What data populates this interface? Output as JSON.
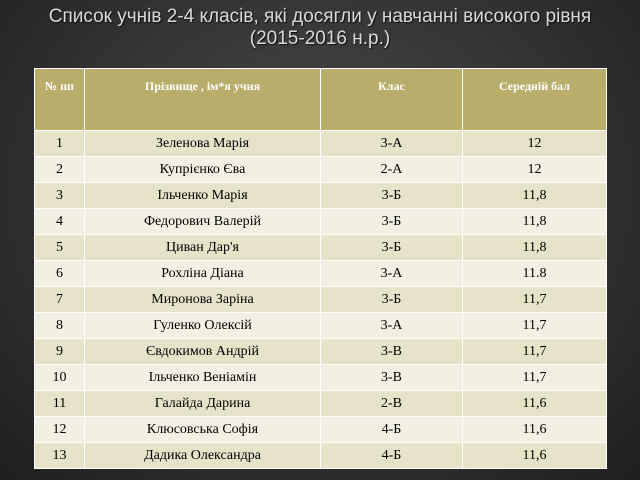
{
  "title": {
    "line1": "Список учнів 2-4 класів, які досягли у навчанні високого рівня",
    "line2": "(2015-2016 н.р.)"
  },
  "table": {
    "headers": [
      "№ пп",
      "Прізвище , ім*я  учня",
      "Клас",
      "Середній бал"
    ],
    "rows": [
      [
        "1",
        "Зеленова Марія",
        "3-А",
        "12"
      ],
      [
        "2",
        "Купрієнко Єва",
        "2-А",
        "12"
      ],
      [
        "3",
        "Ільченко Марія",
        "3-Б",
        "11,8"
      ],
      [
        "4",
        "Федорович Валерій",
        "3-Б",
        "11,8"
      ],
      [
        "5",
        "Циван Дар'я",
        "3-Б",
        "11,8"
      ],
      [
        "6",
        "Рохліна Діана",
        "3-А",
        "11.8"
      ],
      [
        "7",
        "Миронова Заріна",
        "3-Б",
        "11,7"
      ],
      [
        "8",
        "Гуленко Олексій",
        "3-А",
        "11,7"
      ],
      [
        "9",
        "Євдокимов Андрій",
        "3-В",
        "11,7"
      ],
      [
        "10",
        "Ільченко Веніамін",
        "3-В",
        "11,7"
      ],
      [
        "11",
        "Галайда Дарина",
        "2-В",
        "11,6"
      ],
      [
        "12",
        "Клюсовська Софія",
        "4-Б",
        "11,6"
      ],
      [
        "13",
        "Дадика Олександра",
        "4-Б",
        "11,6"
      ]
    ]
  }
}
